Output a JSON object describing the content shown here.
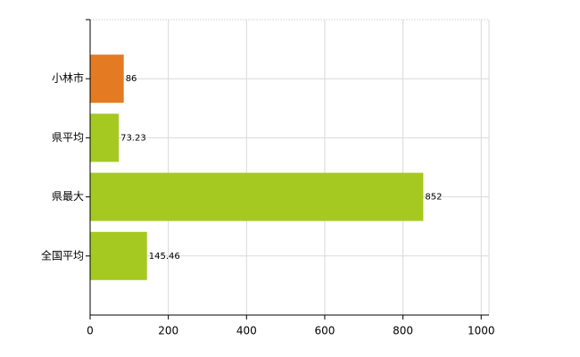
{
  "chart_data": {
    "type": "bar",
    "orientation": "horizontal",
    "categories": [
      "小林市",
      "県平均",
      "県最大",
      "全国平均"
    ],
    "values": [
      86,
      73.23,
      852,
      145.46
    ],
    "colors": [
      "#e47b22",
      "#a6c922",
      "#a6c922",
      "#a6c922"
    ],
    "xlim": [
      0,
      1020
    ],
    "xticks": [
      0,
      200,
      400,
      600,
      800,
      1000
    ],
    "grid": true
  }
}
